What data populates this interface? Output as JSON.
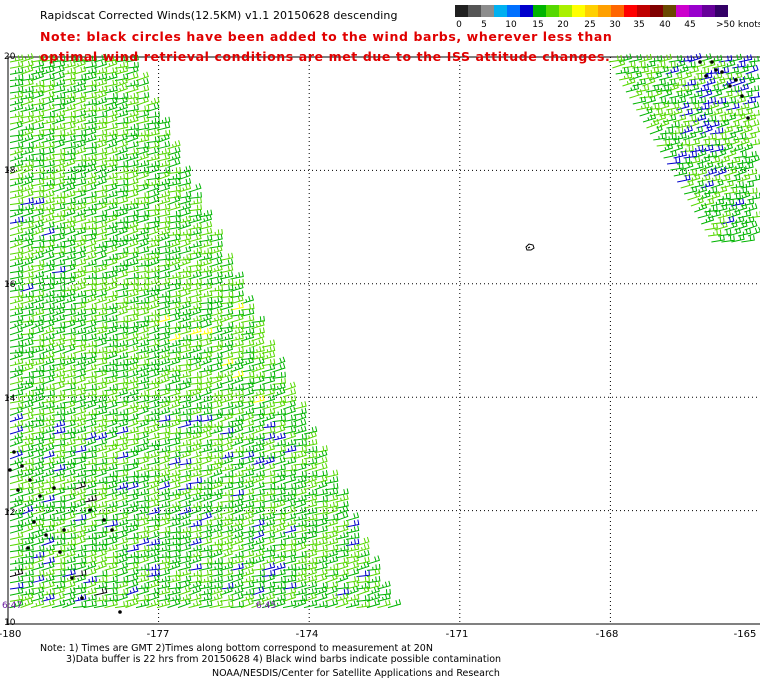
{
  "title": "Rapidscat Corrected Winds(12.5KM) v1.1 20150628 descending",
  "note_line1": "Note: black circles have been added to the wind barbs, wherever less than",
  "note_line2": "optimal wind retrieval conditions are met due to the ISS attitude changes.",
  "color_scale": {
    "colors": [
      "#202020",
      "#555555",
      "#8c8c8c",
      "#00b0f0",
      "#0070ff",
      "#0000cc",
      "#00b400",
      "#55d800",
      "#aaf000",
      "#ffff00",
      "#ffd000",
      "#ffa000",
      "#ff6600",
      "#ff0000",
      "#c00000",
      "#800000",
      "#6a4800",
      "#cc00cc",
      "#9900cc",
      "#660099",
      "#330066"
    ],
    "labels": [
      "0",
      "5",
      "10",
      "15",
      "20",
      "25",
      "30",
      "35",
      "40",
      "45",
      ">50 knots"
    ]
  },
  "axes": {
    "lat_ticks": [
      "20",
      "18",
      "16",
      "14",
      "12",
      "10"
    ],
    "lon_ticks": [
      "-180",
      "-177",
      "-174",
      "-171",
      "-168",
      "-165"
    ],
    "lat_range": [
      10,
      20
    ],
    "lon_range": [
      -180,
      -165
    ],
    "grid": true
  },
  "time_labels": [
    "6:47",
    "6:45"
  ],
  "island_marker": "island",
  "footnote_line1": "Note: 1) Times are GMT 2)Times along bottom correspond to measurement at 20N",
  "footnote_line2": "3)Data buffer is 22 hrs from 20150628 4) Black wind barbs indicate possible contamination",
  "credit": "NOAA/NESDIS/Center for Satellite Applications and Research",
  "barb_colors": {
    "green": "#00b400",
    "light_green": "#55d800",
    "blue": "#0000cc",
    "yellow": "#ffff00",
    "black": "#000000"
  }
}
